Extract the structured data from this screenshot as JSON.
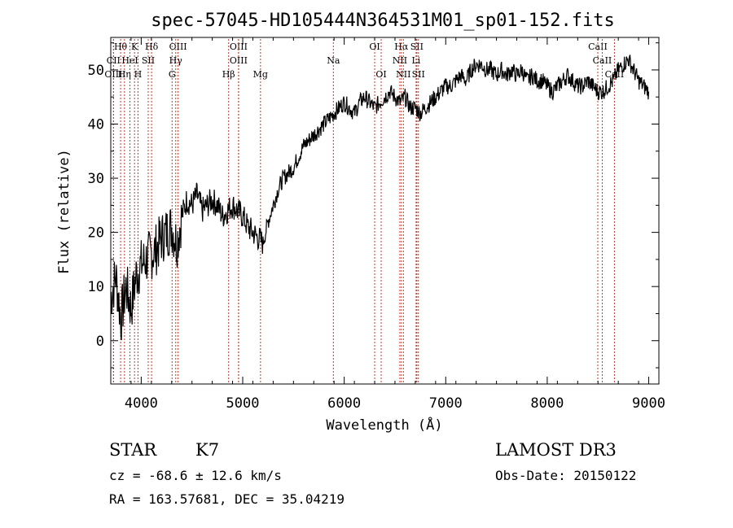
{
  "chart_data": {
    "type": "line",
    "title": "spec-57045-HD105444N364531M01_sp01-152.fits",
    "xlabel": "Wavelength (Å)",
    "ylabel": "Flux (relative)",
    "xlim": [
      3700,
      9100
    ],
    "ylim": [
      -8,
      56
    ],
    "x_ticks": [
      4000,
      5000,
      6000,
      7000,
      8000,
      9000
    ],
    "y_ticks": [
      0,
      10,
      20,
      30,
      40,
      50
    ],
    "grid": false,
    "series": [
      {
        "x": [
          3700,
          3750,
          3800,
          3850,
          3900,
          3950,
          4000,
          4050,
          4100,
          4150,
          4200,
          4250,
          4300,
          4350,
          4400,
          4450,
          4500,
          4550,
          4600,
          4650,
          4700,
          4750,
          4800,
          4850,
          4900,
          4950,
          5000,
          5050,
          5100,
          5150,
          5200,
          5250,
          5300,
          5350,
          5400,
          5450,
          5500,
          5550,
          5600,
          5650,
          5700,
          5750,
          5800,
          5850,
          5900,
          5950,
          6000,
          6050,
          6100,
          6150,
          6200,
          6250,
          6300,
          6350,
          6400,
          6450,
          6500,
          6550,
          6600,
          6650,
          6700,
          6750,
          6800,
          6850,
          6900,
          6950,
          7000,
          7050,
          7100,
          7150,
          7200,
          7250,
          7300,
          7350,
          7400,
          7450,
          7500,
          7550,
          7600,
          7650,
          7700,
          7750,
          7800,
          7850,
          7900,
          7950,
          8000,
          8050,
          8100,
          8150,
          8200,
          8250,
          8300,
          8350,
          8400,
          8450,
          8500,
          8550,
          8600,
          8650,
          8700,
          8750,
          8800,
          8850,
          8900,
          8950,
          9000
        ],
        "values": [
          8,
          12,
          4,
          10,
          6,
          12,
          14,
          15,
          16,
          17,
          19,
          20,
          21,
          18,
          23,
          26,
          25,
          27,
          24,
          25,
          26,
          25,
          23,
          24,
          25,
          24,
          23,
          21,
          20,
          19,
          18,
          22,
          25,
          28,
          30,
          31,
          32,
          34,
          36,
          37,
          38,
          39,
          40,
          41,
          42,
          43,
          44,
          43,
          42,
          44,
          45,
          44,
          43,
          44,
          45,
          46,
          45,
          44,
          45,
          43,
          43,
          42,
          43,
          44,
          45,
          46,
          47,
          47,
          48,
          49,
          48,
          50,
          51,
          51,
          50,
          50,
          49,
          50,
          49,
          50,
          49,
          50,
          48,
          49,
          48,
          48,
          47,
          46,
          47,
          48,
          49,
          48,
          47,
          47,
          48,
          47,
          46,
          46,
          47,
          48,
          50,
          51,
          52,
          50,
          48,
          47,
          46
        ]
      }
    ],
    "spectral_lines": [
      {
        "name": "Hθ"
      },
      {
        "name": "K"
      },
      {
        "name": "Hδ"
      },
      {
        "name": "OIII"
      },
      {
        "name": "CII"
      },
      {
        "name": "HeI"
      },
      {
        "name": "SII"
      },
      {
        "name": "Hγ"
      },
      {
        "name": "OIII"
      },
      {
        "name": "Hη"
      },
      {
        "name": "H"
      },
      {
        "name": "G"
      },
      {
        "name": "OIII"
      },
      {
        "name": "OIII"
      },
      {
        "name": "Hβ"
      },
      {
        "name": "Mg"
      },
      {
        "name": "Na"
      },
      {
        "name": "OI"
      },
      {
        "name": "OI"
      },
      {
        "name": "Hα"
      },
      {
        "name": "SII"
      },
      {
        "name": "NII"
      },
      {
        "name": "Li"
      },
      {
        "name": "NII"
      },
      {
        "name": "SII"
      },
      {
        "name": "CaII"
      },
      {
        "name": "CaII"
      },
      {
        "name": "CaII"
      }
    ]
  },
  "footer": {
    "object_class": "STAR",
    "subclass": "K7",
    "survey": "LAMOST DR3",
    "cz": "cz = -68.6 ± 12.6 km/s",
    "obs_date": "Obs-Date: 20150122",
    "coords": "RA = 163.57681, DEC =  35.04219"
  }
}
